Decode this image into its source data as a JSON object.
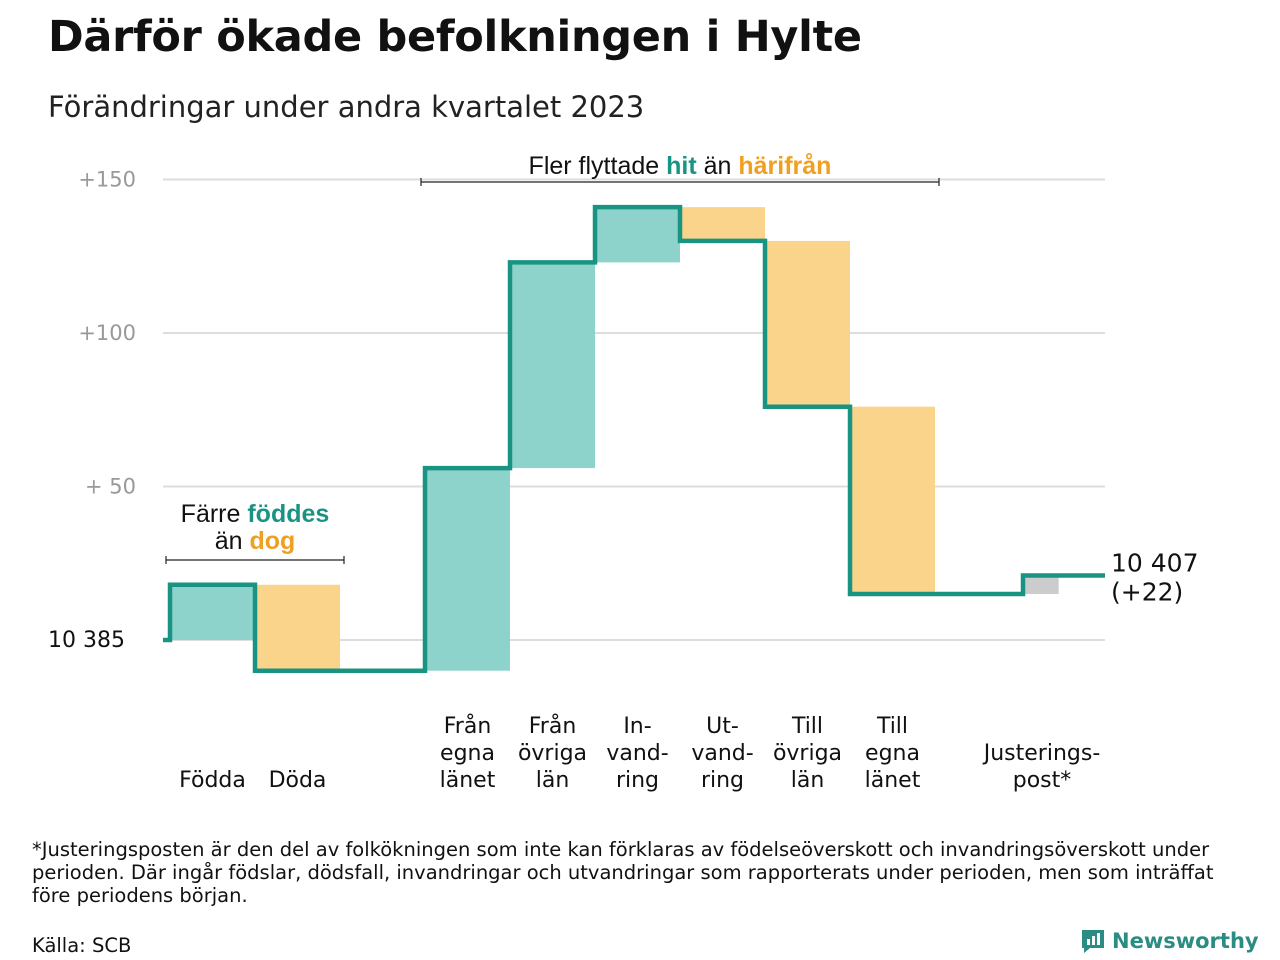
{
  "title": "Därför ökade befolkningen i Hylte",
  "subtitle": "Förändringar under andra kvartalet 2023",
  "footnote": "*Justeringsposten är den del av folkökningen som inte kan förklaras av födelseöverskott och invandringsöverskott under perioden. Där ingår födslar, dödsfall, invandringar och utvandringar som rapporterats under perioden, men som inträffat före periodens början.",
  "source": "Källa: SCB",
  "logo_text": "Newsworthy",
  "colors": {
    "line": "#1a9482",
    "increase": "#8dd3cb",
    "decrease": "#fad48b",
    "adjustment": "#cccccc",
    "grid": "#dddddd",
    "tick": "#999999",
    "accent_teal": "#1a9482",
    "accent_orange": "#f0a020"
  },
  "chart_data": {
    "type": "waterfall",
    "start_value": 10385,
    "start_label": "10  385",
    "end_label_lines": [
      "10 407",
      "(+22)"
    ],
    "y_ticks": [
      {
        "value": 150,
        "label": "+150"
      },
      {
        "value": 100,
        "label": "+100"
      },
      {
        "value": 50,
        "label": "+  50"
      }
    ],
    "ylim": [
      -10,
      152
    ],
    "steps": [
      {
        "label_lines": [
          "Födda"
        ],
        "change": 18,
        "kind": "increase"
      },
      {
        "label_lines": [
          "Döda"
        ],
        "change": -28,
        "kind": "decrease"
      },
      {
        "label_lines": [],
        "change": 0,
        "kind": "gap"
      },
      {
        "label_lines": [
          "Från",
          "egna",
          "länet"
        ],
        "change": 66,
        "kind": "increase"
      },
      {
        "label_lines": [
          "Från",
          "övriga",
          "län"
        ],
        "change": 67,
        "kind": "increase"
      },
      {
        "label_lines": [
          "In-",
          "vand-",
          "ring"
        ],
        "change": 18,
        "kind": "increase"
      },
      {
        "label_lines": [
          "Ut-",
          "vand-",
          "ring"
        ],
        "change": -11,
        "kind": "decrease"
      },
      {
        "label_lines": [
          "Till",
          "övriga",
          "län"
        ],
        "change": -54,
        "kind": "decrease"
      },
      {
        "label_lines": [
          "Till",
          "egna",
          "länet"
        ],
        "change": -61,
        "kind": "decrease"
      },
      {
        "label_lines": [],
        "change": 0,
        "kind": "gap"
      },
      {
        "label_lines": [
          "Justerings-",
          "post*"
        ],
        "change": 6,
        "kind": "adjustment"
      }
    ],
    "annotations": [
      {
        "name": "annotation-births-deaths",
        "from_step": 0,
        "to_step": 1,
        "lines": [
          [
            {
              "text": "Färre ",
              "style": "plain"
            },
            {
              "text": "föddes",
              "style": "teal"
            }
          ],
          [
            {
              "text": "än ",
              "style": "plain"
            },
            {
              "text": "dog",
              "style": "orange"
            }
          ]
        ]
      },
      {
        "name": "annotation-migration",
        "from_step": 3,
        "to_step": 8,
        "lines": [
          [
            {
              "text": "Fler flyttade ",
              "style": "plain"
            },
            {
              "text": "hit",
              "style": "teal"
            },
            {
              "text": "  än ",
              "style": "plain"
            },
            {
              "text": "härifrån",
              "style": "orange"
            }
          ]
        ]
      }
    ]
  }
}
